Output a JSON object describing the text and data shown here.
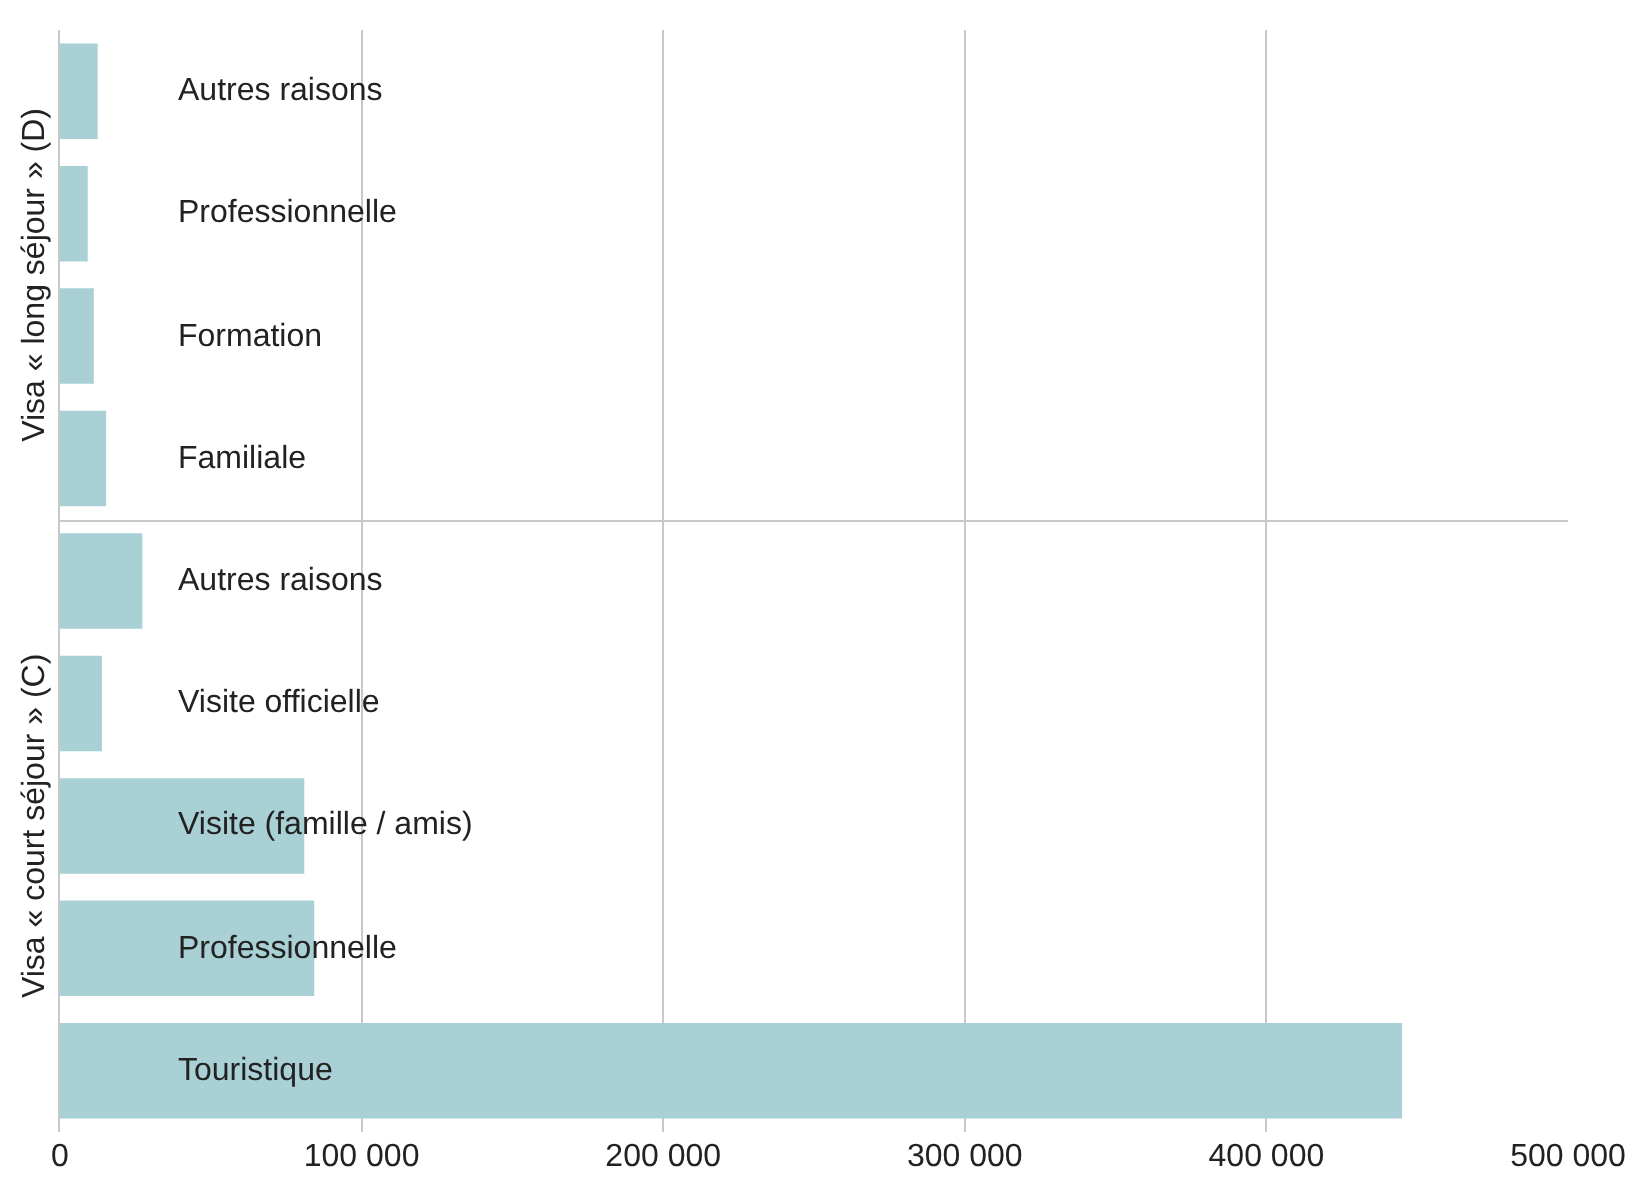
{
  "chart_data": [
    {
      "type": "bar",
      "orientation": "horizontal",
      "ylabel": "Visa « long séjour » (D)",
      "categories": [
        "Autres raisons",
        "Professionnelle",
        "Formation",
        "Familiale"
      ],
      "values": [
        12500,
        9200,
        11200,
        15300
      ],
      "color": "#a8d0d5",
      "xlim": [
        0,
        500000
      ],
      "xticks": [
        {
          "value": 0,
          "label": null
        },
        {
          "value": 100000,
          "label": null
        },
        {
          "value": 200000,
          "label": null
        },
        {
          "value": 300000,
          "label": null
        },
        {
          "value": 400000,
          "label": null
        },
        {
          "value": 500000,
          "label": null
        }
      ],
      "grid": "x",
      "tick_labels": false
    },
    {
      "type": "bar",
      "orientation": "horizontal",
      "ylabel": "Visa « court séjour » (C)",
      "categories": [
        "Autres raisons",
        "Visite officielle",
        "Visite (famille / amis)",
        "Professionnelle",
        "Touristique"
      ],
      "values": [
        27300,
        13900,
        81000,
        84300,
        445000
      ],
      "color": "#a8d0d5",
      "xlim": [
        0,
        500000
      ],
      "xticks": [
        0,
        {
          "value": 100000,
          "label": "100 000"
        },
        {
          "value": 200000,
          "label": "200 000"
        },
        {
          "value": 300000,
          "label": "300 000"
        },
        {
          "value": 400000,
          "label": "400 000"
        },
        {
          "value": 500000,
          "label": "500 000"
        }
      ],
      "grid": "x",
      "tick_labels": "x"
    }
  ]
}
